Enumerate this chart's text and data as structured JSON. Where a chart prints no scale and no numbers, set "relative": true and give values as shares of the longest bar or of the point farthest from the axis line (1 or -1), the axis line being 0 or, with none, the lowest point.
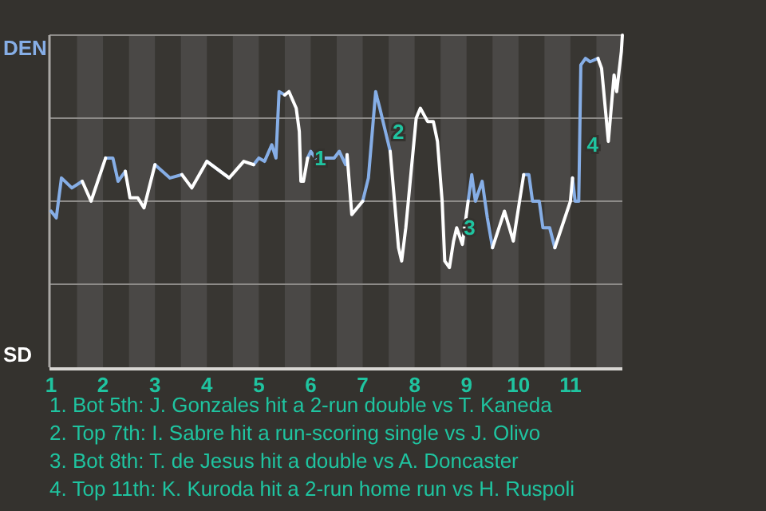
{
  "chart_data": {
    "type": "line",
    "relative": true,
    "grid": true,
    "marker": "none",
    "line_style": "solid",
    "xlim": [
      1,
      12
    ],
    "xticks": [
      1,
      2,
      3,
      4,
      5,
      6,
      7,
      8,
      9,
      10,
      11
    ],
    "x": [
      1.0,
      1.1,
      1.2,
      1.4,
      1.6,
      1.77,
      2.05,
      2.19,
      2.29,
      2.43,
      2.52,
      2.67,
      2.79,
      3.0,
      3.29,
      3.52,
      3.71,
      4.0,
      4.43,
      4.71,
      4.9,
      5.0,
      5.11,
      5.25,
      5.33,
      5.39,
      5.5,
      5.58,
      5.72,
      5.78,
      5.81,
      5.86,
      5.94,
      6.0,
      6.09,
      6.18,
      6.24,
      6.45,
      6.55,
      6.67,
      6.7,
      6.79,
      7.0,
      7.11,
      7.25,
      7.28,
      7.33,
      7.53,
      7.69,
      7.75,
      7.83,
      8.03,
      8.11,
      8.25,
      8.36,
      8.44,
      8.53,
      8.58,
      8.67,
      8.75,
      8.81,
      8.92,
      9.03,
      9.1,
      9.17,
      9.3,
      9.4,
      9.5,
      9.73,
      9.9,
      10.1,
      10.2,
      10.27,
      10.4,
      10.47,
      10.6,
      10.7,
      11.0,
      11.04,
      11.09,
      11.16,
      11.2,
      11.29,
      11.38,
      11.53,
      11.6,
      11.73,
      11.84,
      11.89,
      11.98,
      12.0
    ],
    "series": [
      {
        "color": "#86aee6",
        "values": [
          0.47,
          0.45,
          0.57,
          0.54,
          0.56,
          null,
          0.63,
          0.63,
          0.56,
          0.59,
          null,
          null,
          null,
          0.61,
          0.57,
          0.58,
          null,
          0.62,
          0.57,
          null,
          0.61,
          0.63,
          0.62,
          0.67,
          0.63,
          0.83,
          0.82,
          null,
          null,
          null,
          null,
          null,
          0.63,
          0.65,
          0.63,
          0.65,
          0.63,
          0.63,
          0.65,
          0.61,
          0.64,
          null,
          0.5,
          0.57,
          0.83,
          0.81,
          0.78,
          0.65,
          null,
          null,
          null,
          null,
          null,
          null,
          null,
          null,
          null,
          null,
          null,
          null,
          null,
          null,
          0.5,
          0.58,
          0.5,
          0.56,
          0.45,
          0.36,
          null,
          null,
          0.58,
          0.58,
          0.5,
          0.5,
          0.42,
          0.42,
          0.36,
          null,
          0.57,
          0.5,
          0.5,
          0.91,
          0.93,
          0.92,
          0.93,
          null,
          null,
          null,
          null,
          null,
          null
        ]
      },
      {
        "color": "#ffffff",
        "values": [
          null,
          null,
          null,
          null,
          0.56,
          0.5,
          0.63,
          null,
          null,
          0.59,
          0.51,
          0.51,
          0.48,
          0.61,
          null,
          0.58,
          0.54,
          0.62,
          0.57,
          0.62,
          0.61,
          null,
          null,
          null,
          null,
          null,
          0.82,
          0.83,
          0.78,
          0.71,
          0.56,
          0.56,
          0.63,
          null,
          null,
          null,
          null,
          null,
          null,
          null,
          0.64,
          0.46,
          0.5,
          null,
          null,
          null,
          null,
          0.65,
          0.36,
          0.32,
          0.42,
          0.75,
          0.78,
          0.74,
          0.74,
          0.68,
          0.5,
          0.32,
          0.3,
          0.38,
          0.42,
          0.37,
          0.5,
          null,
          null,
          null,
          null,
          0.36,
          0.47,
          0.38,
          0.58,
          null,
          null,
          null,
          null,
          null,
          0.36,
          0.5,
          0.57,
          null,
          null,
          null,
          null,
          null,
          0.93,
          0.9,
          0.68,
          0.88,
          0.83,
          0.95,
          1.0
        ]
      }
    ],
    "bands": [
      {
        "axis": "x",
        "from": 1.5,
        "to": 2,
        "color": "#4a4846"
      },
      {
        "axis": "x",
        "from": 2.5,
        "to": 3,
        "color": "#4a4846"
      },
      {
        "axis": "x",
        "from": 3.5,
        "to": 4,
        "color": "#4a4846"
      },
      {
        "axis": "x",
        "from": 4.5,
        "to": 5,
        "color": "#4a4846"
      },
      {
        "axis": "x",
        "from": 5.5,
        "to": 6,
        "color": "#4a4846"
      },
      {
        "axis": "x",
        "from": 6.5,
        "to": 7,
        "color": "#4a4846"
      },
      {
        "axis": "x",
        "from": 7.5,
        "to": 8,
        "color": "#4a4846"
      },
      {
        "axis": "x",
        "from": 8.5,
        "to": 9,
        "color": "#4a4846"
      },
      {
        "axis": "x",
        "from": 9.5,
        "to": 10,
        "color": "#4a4846"
      },
      {
        "axis": "x",
        "from": 10.5,
        "to": 11,
        "color": "#4a4846"
      },
      {
        "axis": "x",
        "from": 11.5,
        "to": 12,
        "color": "#4a4846"
      }
    ],
    "annotations": [
      {
        "text": "1",
        "x": 5.94,
        "y": 0.63
      },
      {
        "text": "2",
        "x": 7.44,
        "y": 0.71
      },
      {
        "text": "3",
        "x": 8.81,
        "y": 0.42
      },
      {
        "text": "4",
        "x": 11.18,
        "y": 0.67
      },
      "DEN",
      "SD",
      "1. Bot 5th: J. Gonzales hit a 2-run double vs T. Kaneda",
      "2. Top 7th: I. Sabre hit a run-scoring single vs J. Olivo",
      "3. Bot 8th: T. de Jesus hit a double vs A. Doncaster",
      "4. Top 11th: K. Kuroda hit a 2-run home run vs H. Ruspoli"
    ]
  }
}
